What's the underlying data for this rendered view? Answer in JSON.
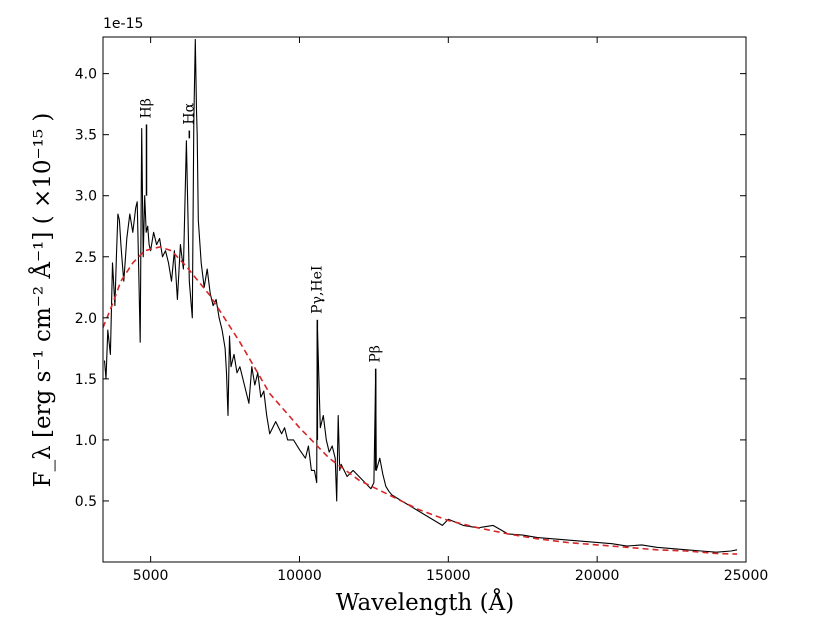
{
  "chart_data": {
    "type": "line",
    "xlabel": "Wavelength (Å)",
    "ylabel": "F_λ [erg s⁻¹ cm⁻² Å⁻¹] ( ×10⁻¹⁵ )",
    "offset_text": "1e-15",
    "xlim": [
      3400,
      25000
    ],
    "ylim": [
      0,
      4.3
    ],
    "x_ticks": [
      5000,
      10000,
      15000,
      20000,
      25000
    ],
    "x_tick_labels": [
      "5000",
      "10000",
      "15000",
      "20000",
      "25000"
    ],
    "y_ticks": [
      0.5,
      1.0,
      1.5,
      2.0,
      2.5,
      3.0,
      3.5,
      4.0
    ],
    "y_tick_labels": [
      "0.5",
      "1.0",
      "1.5",
      "2.0",
      "2.5",
      "3.0",
      "3.5",
      "4.0"
    ],
    "grid": false,
    "series": [
      {
        "style": "solid",
        "color": "#000000",
        "x": [
          3450,
          3500,
          3560,
          3650,
          3720,
          3800,
          3850,
          3900,
          3950,
          4000,
          4050,
          4100,
          4200,
          4300,
          4400,
          4500,
          4550,
          4600,
          4650,
          4700,
          4750,
          4800,
          4850,
          4900,
          4950,
          5000,
          5100,
          5200,
          5300,
          5400,
          5500,
          5600,
          5700,
          5800,
          5900,
          6000,
          6100,
          6200,
          6300,
          6400,
          6450,
          6500,
          6540,
          6563,
          6600,
          6700,
          6800,
          6900,
          7000,
          7100,
          7200,
          7300,
          7400,
          7500,
          7550,
          7600,
          7650,
          7700,
          7800,
          7900,
          8000,
          8100,
          8200,
          8300,
          8400,
          8500,
          8600,
          8700,
          8800,
          8900,
          9000,
          9200,
          9400,
          9500,
          9600,
          9800,
          10000,
          10200,
          10300,
          10400,
          10500,
          10580,
          10600,
          10700,
          10800,
          10900,
          11000,
          11100,
          11200,
          11250,
          11300,
          11350,
          11400,
          11500,
          11600,
          11800,
          12000,
          12200,
          12400,
          12500,
          12560,
          12580,
          12700,
          12800,
          12900,
          13000,
          13100,
          13300,
          14800,
          15000,
          15500,
          16000,
          16500,
          17000,
          17500,
          18000,
          20500,
          21000,
          21500,
          22000,
          22500,
          23000,
          23500,
          24000,
          24500,
          24700
        ],
        "y": [
          1.65,
          1.5,
          1.9,
          1.7,
          2.45,
          2.1,
          2.5,
          2.85,
          2.8,
          2.6,
          2.45,
          2.3,
          2.65,
          2.85,
          2.7,
          2.9,
          2.95,
          2.4,
          1.8,
          3.55,
          2.5,
          3.0,
          2.7,
          2.75,
          2.6,
          2.55,
          2.7,
          2.6,
          2.65,
          2.5,
          2.55,
          2.45,
          2.3,
          2.55,
          2.15,
          2.6,
          2.4,
          3.45,
          2.3,
          2.0,
          3.6,
          4.28,
          3.7,
          3.5,
          2.8,
          2.45,
          2.25,
          2.4,
          2.2,
          2.1,
          2.15,
          2.0,
          1.9,
          1.75,
          1.55,
          1.2,
          1.85,
          1.6,
          1.7,
          1.55,
          1.6,
          1.5,
          1.4,
          1.3,
          1.6,
          1.45,
          1.55,
          1.35,
          1.4,
          1.2,
          1.05,
          1.15,
          1.05,
          1.1,
          1.0,
          1.0,
          0.92,
          0.85,
          0.95,
          0.75,
          0.75,
          0.65,
          1.95,
          1.1,
          1.2,
          1.0,
          0.9,
          0.95,
          0.85,
          0.5,
          1.2,
          0.75,
          0.8,
          0.75,
          0.7,
          0.75,
          0.7,
          0.65,
          0.6,
          0.65,
          1.55,
          0.75,
          0.85,
          0.72,
          0.62,
          0.58,
          0.55,
          0.52,
          0.3,
          0.35,
          0.3,
          0.28,
          0.3,
          0.23,
          0.22,
          0.2,
          0.15,
          0.13,
          0.14,
          0.12,
          0.11,
          0.1,
          0.09,
          0.08,
          0.09,
          0.1
        ]
      },
      {
        "style": "dashed",
        "color": "#d62728",
        "x": [
          3400,
          3700,
          4000,
          4400,
          4800,
          5300,
          5700,
          6200,
          7000,
          8000,
          9000,
          10000,
          11000,
          12000,
          13000,
          14000,
          15000,
          16000,
          17000,
          18000,
          19000,
          20000,
          21000,
          22000,
          23000,
          24000,
          24700
        ],
        "y": [
          1.92,
          2.1,
          2.3,
          2.45,
          2.55,
          2.58,
          2.55,
          2.42,
          2.18,
          1.8,
          1.38,
          1.1,
          0.85,
          0.67,
          0.55,
          0.43,
          0.34,
          0.28,
          0.23,
          0.19,
          0.16,
          0.14,
          0.12,
          0.1,
          0.09,
          0.07,
          0.065
        ]
      }
    ],
    "annotations": [
      {
        "text": "Hβ",
        "x": 4861,
        "y_top": 3.6,
        "y_line_bottom": 3.0
      },
      {
        "text": "Hα",
        "x": 6300,
        "y_top": 3.55,
        "y_line_bottom": 3.47
      },
      {
        "text": "Pγ,HeI",
        "x": 10600,
        "y_top": 2.0,
        "y_line_bottom": 1.0
      },
      {
        "text": "Pβ",
        "x": 12560,
        "y_top": 1.6,
        "y_line_bottom": 0.75
      }
    ]
  }
}
